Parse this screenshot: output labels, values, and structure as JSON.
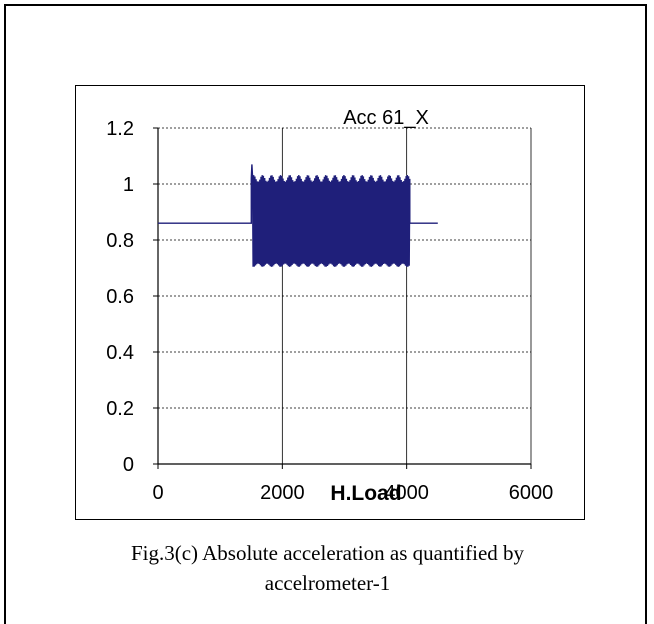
{
  "chart_data": {
    "type": "line",
    "title": "Acc 61_X",
    "xlabel": "H.Load",
    "ylabel": "",
    "xlim": [
      0,
      6000
    ],
    "ylim": [
      0,
      1.2
    ],
    "x_ticks": [
      "0",
      "2000",
      "4000",
      "6000"
    ],
    "y_ticks": [
      "0",
      "0.2",
      "0.4",
      "0.6",
      "0.8",
      "1",
      "1.2"
    ],
    "grid": true,
    "legend": "none",
    "series": [
      {
        "color": "#1f1f7a",
        "segments": [
          {
            "phase": "steady",
            "x": [
              0,
              1500
            ],
            "value": 0.86
          },
          {
            "phase": "oscillation",
            "x": [
              1500,
              4050
            ],
            "upper": 1.02,
            "lower": 0.71,
            "peak": {
              "x": 1520,
              "y": 1.07
            }
          },
          {
            "phase": "steady",
            "x": [
              4050,
              4500
            ],
            "value": 0.86
          }
        ]
      }
    ]
  },
  "caption": {
    "line1": "Fig.3(c) Absolute acceleration as quantified by",
    "line2": "accelrometer-1"
  }
}
